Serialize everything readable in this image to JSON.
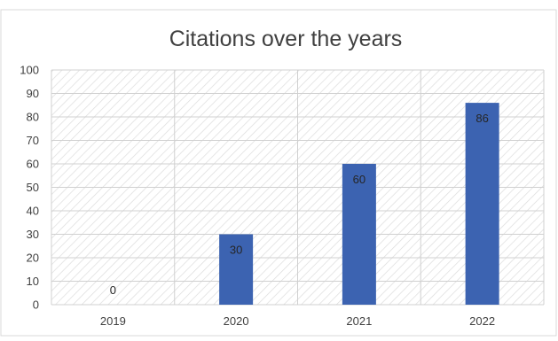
{
  "chart_data": {
    "type": "bar",
    "title": "Citations over the years",
    "categories": [
      "2019",
      "2020",
      "2021",
      "2022"
    ],
    "values": [
      0,
      30,
      60,
      86
    ],
    "data_labels": [
      "0",
      "30",
      "60",
      "86"
    ],
    "ylim": [
      0,
      100
    ],
    "ytick_values": [
      0,
      10,
      20,
      30,
      40,
      50,
      60,
      70,
      80,
      90,
      100
    ],
    "ytick_labels": [
      "0",
      "10",
      "20",
      "30",
      "40",
      "50",
      "60",
      "70",
      "80",
      "90",
      "100"
    ],
    "grid": true,
    "legend": "none",
    "colors": {
      "bar": "#3C63B1",
      "grid": "#D0D0D0",
      "hatch": "#D9D9D9",
      "text": "#404040",
      "title": "#404040",
      "frame": "#D9D9D9"
    }
  }
}
